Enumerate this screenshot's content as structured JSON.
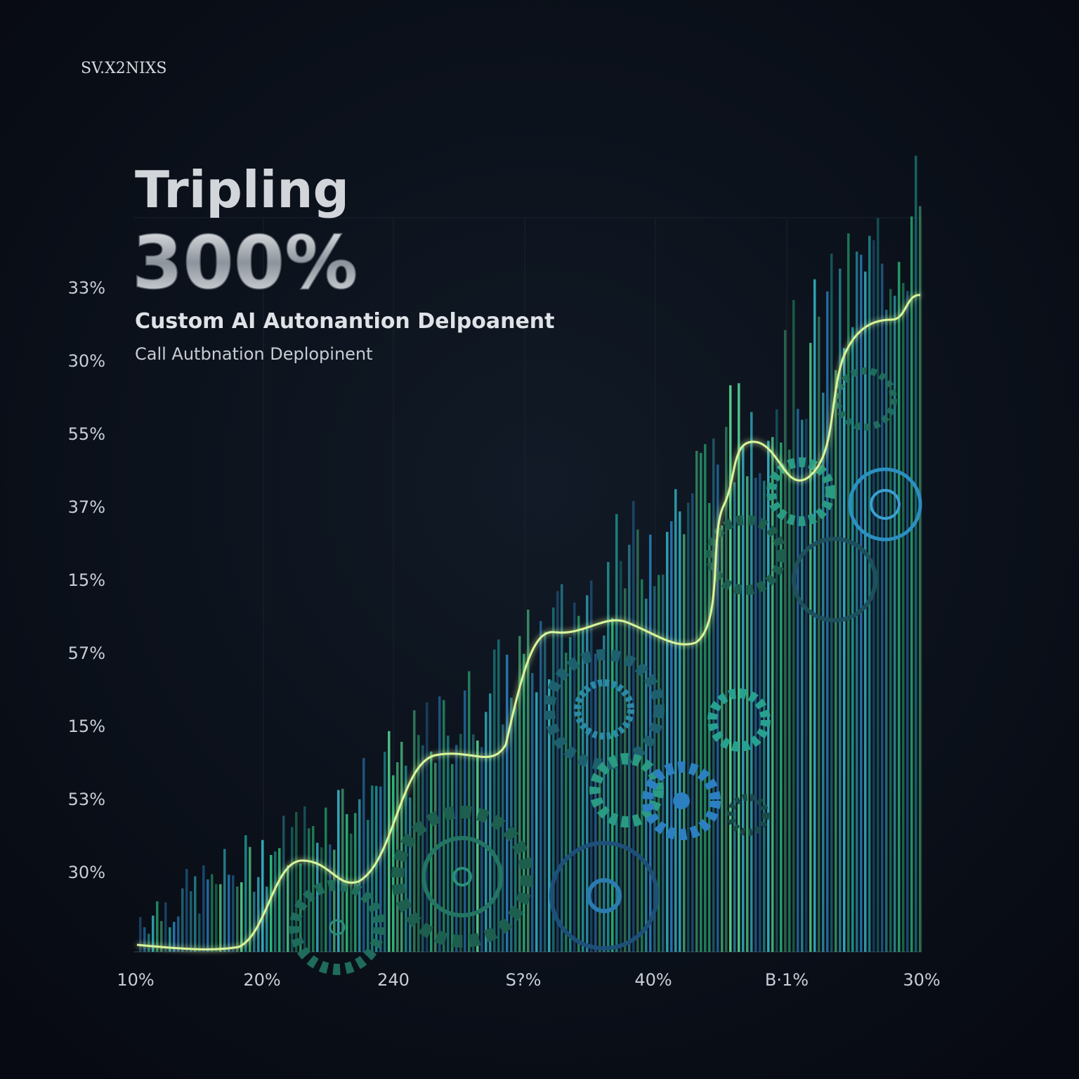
{
  "brand": "SV.X2NIXS",
  "title": "Tripling",
  "headline": "300%",
  "subtitle": "Custom AI Autonantion Delpoanent",
  "caption": "Call Autbnation Deplopinent",
  "y_labels": [
    "33%",
    "30%",
    "55%",
    "37%",
    "15%",
    "57%",
    "15%",
    "53%",
    "30%"
  ],
  "x_labels": [
    "10%",
    "20%",
    "240",
    "S?%",
    "40%",
    "B·1%",
    "30%"
  ]
}
